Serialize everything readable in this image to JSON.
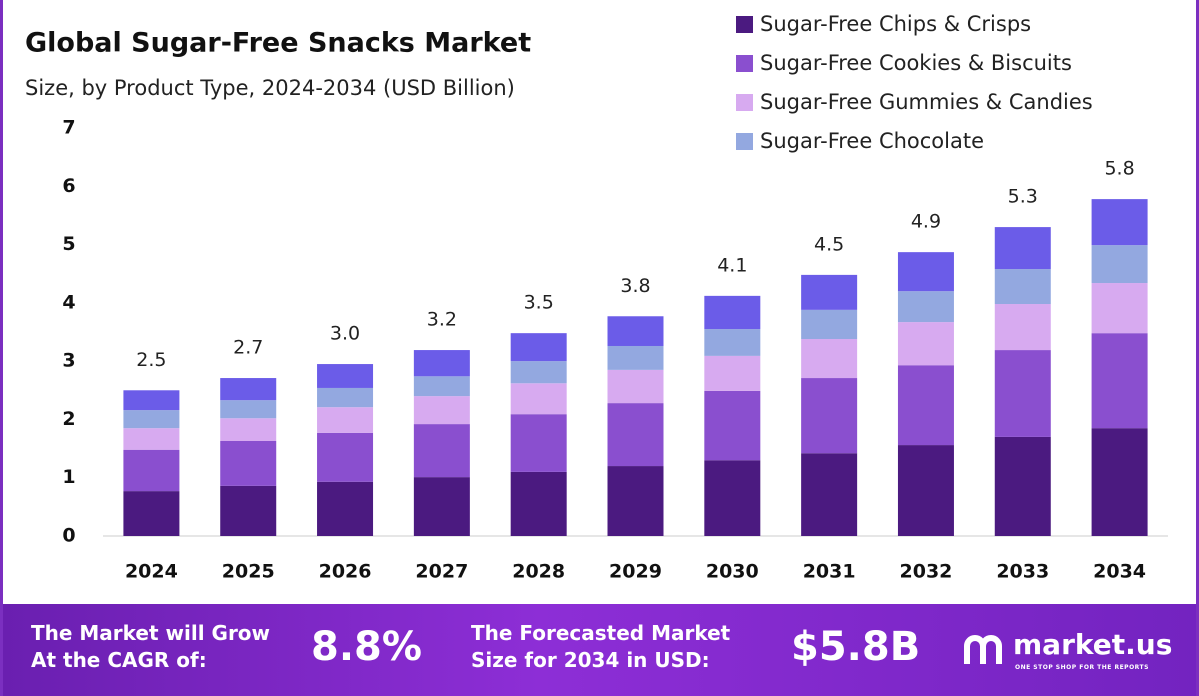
{
  "chart_data": {
    "type": "stacked_bar",
    "title": "Global Sugar-Free Snacks Market",
    "subtitle": "Size, by Product Type, 2024-2034 (USD Billion)",
    "categories": [
      "2024",
      "2025",
      "2026",
      "2027",
      "2028",
      "2029",
      "2030",
      "2031",
      "2032",
      "2033",
      "2034"
    ],
    "series": [
      {
        "name": "Sugar-Free Chips & Crisps",
        "color": "#4b1a80",
        "values": [
          0.77,
          0.86,
          0.93,
          1.01,
          1.1,
          1.2,
          1.3,
          1.42,
          1.56,
          1.7,
          1.85
        ]
      },
      {
        "name": "Sugar-Free Cookies & Biscuits",
        "color": "#8a4fcf",
        "values": [
          0.71,
          0.77,
          0.84,
          0.91,
          0.99,
          1.08,
          1.19,
          1.29,
          1.37,
          1.49,
          1.63
        ]
      },
      {
        "name": "Sugar-Free Gummies & Candies",
        "color": "#d7aaf0",
        "values": [
          0.37,
          0.39,
          0.44,
          0.48,
          0.53,
          0.57,
          0.6,
          0.67,
          0.74,
          0.79,
          0.86
        ]
      },
      {
        "name": "Sugar-Free Chocolate",
        "color": "#93a8e0",
        "values": [
          0.31,
          0.31,
          0.33,
          0.34,
          0.38,
          0.41,
          0.46,
          0.5,
          0.53,
          0.6,
          0.65
        ]
      },
      {
        "color": "#6b5ce8",
        "values": [
          0.34,
          0.38,
          0.41,
          0.45,
          0.48,
          0.51,
          0.57,
          0.6,
          0.67,
          0.72,
          0.79
        ]
      }
    ],
    "totals": [
      2.5,
      2.7,
      3.0,
      3.2,
      3.5,
      3.8,
      4.1,
      4.5,
      4.9,
      5.3,
      5.8
    ],
    "total_labels": [
      "2.5",
      "2.7",
      "3.0",
      "3.2",
      "3.5",
      "3.8",
      "4.1",
      "4.5",
      "4.9",
      "5.3",
      "5.8"
    ],
    "ylim": [
      0,
      7
    ],
    "yticks": [
      0,
      1,
      2,
      3,
      4,
      5,
      6,
      7
    ],
    "grid": false
  },
  "footer": {
    "cagr_text": [
      "The Market will Grow",
      "At the CAGR of:"
    ],
    "cagr_value": "8.8%",
    "forecast_text": [
      "The Forecasted Market",
      "Size for 2034 in USD:"
    ],
    "forecast_value": "$5.8B",
    "brand": "market.us",
    "tagline": "ONE STOP SHOP FOR THE REPORTS"
  }
}
